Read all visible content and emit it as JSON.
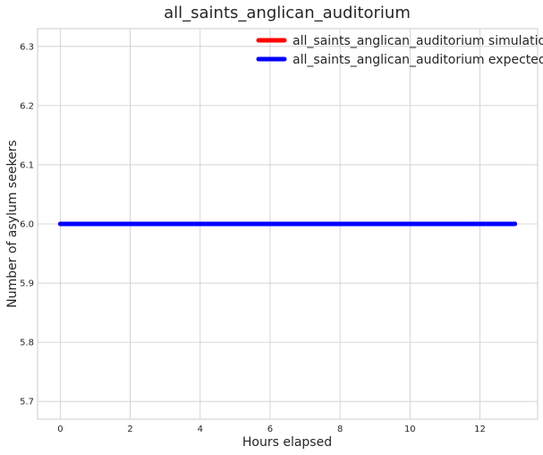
{
  "chart_data": {
    "type": "line",
    "title": "all_saints_anglican_auditorium",
    "xlabel": "Hours elapsed",
    "ylabel": "Number of asylum seekers",
    "xlim": [
      -0.65,
      13.65
    ],
    "ylim": [
      5.67,
      6.33
    ],
    "x_ticks": [
      0,
      2,
      4,
      6,
      8,
      10,
      12
    ],
    "y_ticks": [
      5.7,
      5.8,
      5.9,
      6.0,
      6.1,
      6.2,
      6.3
    ],
    "x_tick_labels": [
      "0",
      "2",
      "4",
      "6",
      "8",
      "10",
      "12"
    ],
    "y_tick_labels": [
      "5.7",
      "5.8",
      "5.9",
      "6.0",
      "6.1",
      "6.2",
      "6.3"
    ],
    "grid": true,
    "legend_position": "top-right",
    "x": [
      0,
      1,
      2,
      3,
      4,
      5,
      6,
      7,
      8,
      9,
      10,
      11,
      12,
      13
    ],
    "series": [
      {
        "name": "all_saints_anglican_auditorium simulation",
        "color": "#ff0000",
        "values": [
          6,
          6,
          6,
          6,
          6,
          6,
          6,
          6,
          6,
          6,
          6,
          6,
          6,
          6
        ]
      },
      {
        "name": "all_saints_anglican_auditorium expected",
        "color": "#0000ff",
        "values": [
          6,
          6,
          6,
          6,
          6,
          6,
          6,
          6,
          6,
          6,
          6,
          6,
          6,
          6
        ]
      }
    ]
  }
}
